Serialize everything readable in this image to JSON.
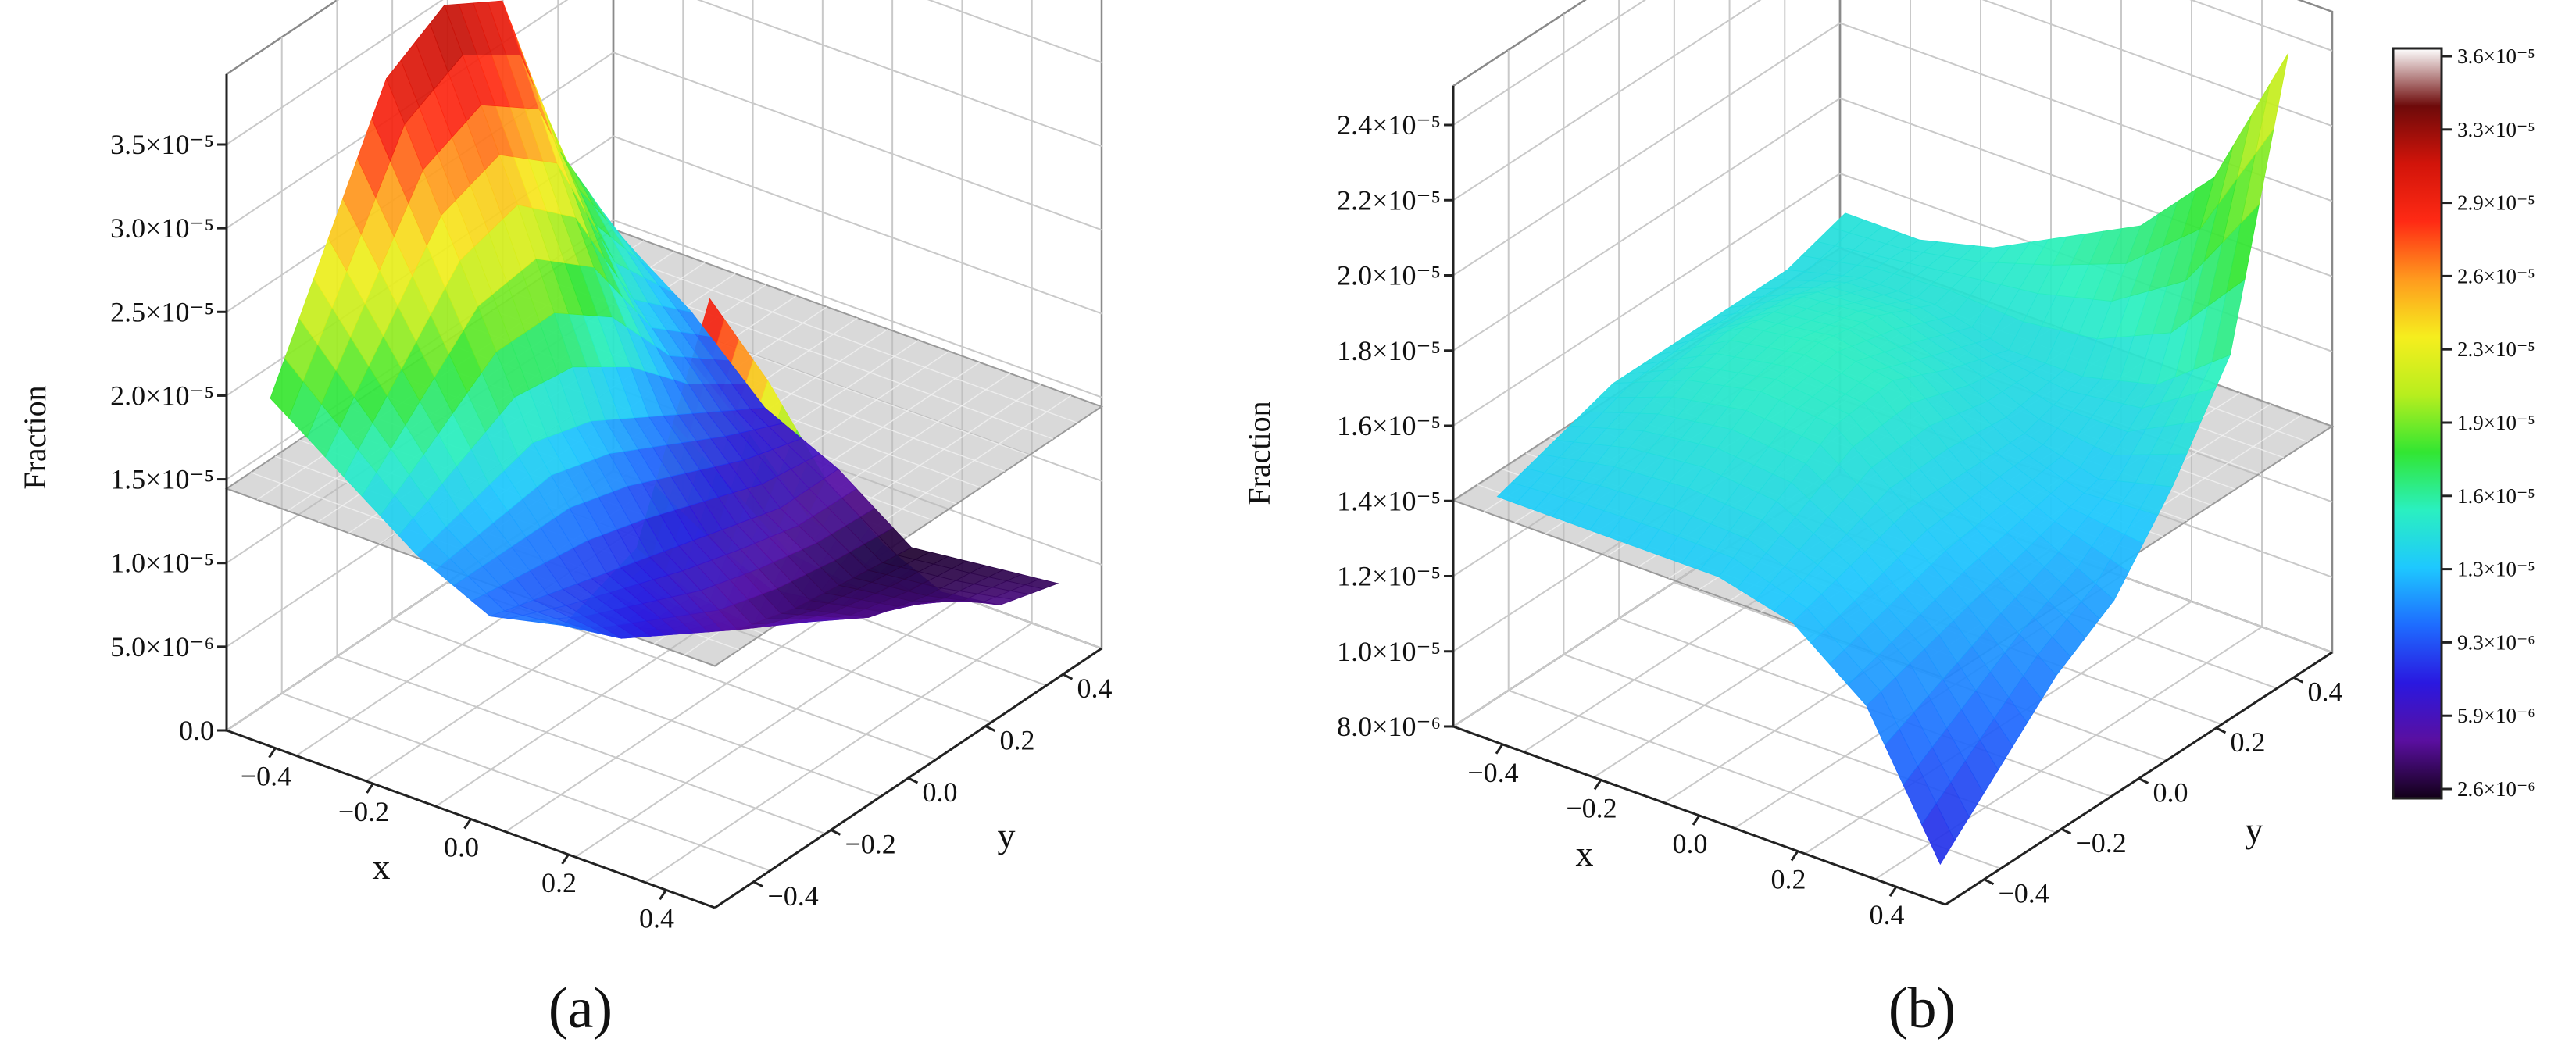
{
  "colorbar": {
    "ticks": [
      "3.6×10⁻⁵",
      "3.3×10⁻⁵",
      "2.9×10⁻⁵",
      "2.6×10⁻⁵",
      "2.3×10⁻⁵",
      "1.9×10⁻⁵",
      "1.6×10⁻⁵",
      "1.3×10⁻⁵",
      "9.3×10⁻⁶",
      "5.9×10⁻⁶",
      "2.6×10⁻⁶"
    ],
    "range": [
      2.6e-06,
      3.6e-05
    ],
    "colors": [
      "#120018",
      "#5a0fa0",
      "#2a18e0",
      "#1e6cff",
      "#1ec8ff",
      "#2af0c0",
      "#32e632",
      "#b8ee1e",
      "#f6ee1e",
      "#ff9a1e",
      "#ff2a14",
      "#d2140a",
      "#6e0a0a",
      "#ffffff"
    ]
  },
  "chart_data": [
    {
      "type": "surface3d",
      "panel_label": "(a)",
      "zlabel": "Fraction",
      "xlabel": "x",
      "ylabel": "y",
      "x_ticks": [
        "−0.4",
        "−0.2",
        "0.0",
        "0.2",
        "0.4"
      ],
      "y_ticks": [
        "−0.4",
        "−0.2",
        "0.0",
        "0.2",
        "0.4"
      ],
      "z_ticks": [
        "0.0",
        "5.0×10⁻⁶",
        "1.0×10⁻⁵",
        "1.5×10⁻⁵",
        "2.0×10⁻⁵",
        "2.5×10⁻⁵",
        "3.0×10⁻⁵",
        "3.5×10⁻⁵"
      ],
      "xlim": [
        -0.5,
        0.5
      ],
      "ylim": [
        -0.5,
        0.5
      ],
      "zlim": [
        0,
        3.8e-05
      ],
      "reference_plane_z": 1.4e-05,
      "surface": {
        "x": [
          -0.45,
          -0.3,
          -0.15,
          0.0,
          0.15,
          0.3,
          0.45
        ],
        "y": [
          -0.45,
          -0.3,
          -0.15,
          0.0,
          0.15,
          0.3,
          0.45
        ],
        "z": [
          [
            1.9e-05,
            2.6e-05,
            3.3e-05,
            3.5e-05,
            3.3e-05,
            2.2e-05,
            1.5e-05
          ],
          [
            1.6e-05,
            2e-05,
            2.4e-05,
            2.5e-05,
            2.2e-05,
            1.5e-05,
            1.2e-05
          ],
          [
            1.3e-05,
            1.4e-05,
            1.5e-05,
            1.4e-05,
            1.2e-05,
            1e-05,
            8e-06
          ],
          [
            1.1e-05,
            1e-05,
            9e-06,
            8e-06,
            7e-06,
            6e-06,
            6e-06
          ],
          [
            1.2e-05,
            9e-06,
            7e-06,
            5e-06,
            4e-06,
            3.5e-06,
            3e-06
          ],
          [
            1.8e-05,
            1.3e-05,
            9e-06,
            7e-06,
            5e-06,
            4e-06,
            3.5e-06
          ],
          [
            3.4e-05,
            2.7e-05,
            1.9e-05,
            1.3e-05,
            8e-06,
            5e-06,
            4e-06
          ]
        ]
      }
    },
    {
      "type": "surface3d",
      "panel_label": "(b)",
      "zlabel": "Fraction",
      "xlabel": "x",
      "ylabel": "y",
      "x_ticks": [
        "−0.4",
        "−0.2",
        "0.0",
        "0.2",
        "0.4"
      ],
      "y_ticks": [
        "−0.4",
        "−0.2",
        "0.0",
        "0.2",
        "0.4"
      ],
      "z_ticks": [
        "8.0×10⁻⁶",
        "1.0×10⁻⁵",
        "1.2×10⁻⁵",
        "1.4×10⁻⁵",
        "1.6×10⁻⁵",
        "1.8×10⁻⁵",
        "2.0×10⁻⁵",
        "2.2×10⁻⁵",
        "2.4×10⁻⁵"
      ],
      "xlim": [
        -0.5,
        0.5
      ],
      "ylim": [
        -0.5,
        0.5
      ],
      "zlim": [
        8e-06,
        2.5e-05
      ],
      "reference_plane_z": 1.4e-05,
      "surface": {
        "x": [
          -0.45,
          -0.3,
          -0.15,
          0.0,
          0.15,
          0.3,
          0.45
        ],
        "y": [
          -0.45,
          -0.3,
          -0.15,
          0.0,
          0.15,
          0.3,
          0.45
        ],
        "z": [
          [
            1.4e-05,
            1.45e-05,
            1.5e-05,
            1.5e-05,
            1.5e-05,
            1.5e-05,
            1.55e-05
          ],
          [
            1.4e-05,
            1.5e-05,
            1.58e-05,
            1.62e-05,
            1.6e-05,
            1.55e-05,
            1.55e-05
          ],
          [
            1.4e-05,
            1.52e-05,
            1.62e-05,
            1.65e-05,
            1.62e-05,
            1.55e-05,
            1.6e-05
          ],
          [
            1.4e-05,
            1.5e-05,
            1.6e-05,
            1.62e-05,
            1.55e-05,
            1.5e-05,
            1.7e-05
          ],
          [
            1.35e-05,
            1.4e-05,
            1.45e-05,
            1.45e-05,
            1.45e-05,
            1.5e-05,
            1.8e-05
          ],
          [
            1.2e-05,
            1.25e-05,
            1.3e-05,
            1.35e-05,
            1.4e-05,
            1.55e-05,
            2e-05
          ],
          [
            8.5e-06,
            1e-05,
            1.15e-05,
            1.25e-05,
            1.45e-05,
            1.7e-05,
            2.4e-05
          ]
        ]
      }
    }
  ]
}
